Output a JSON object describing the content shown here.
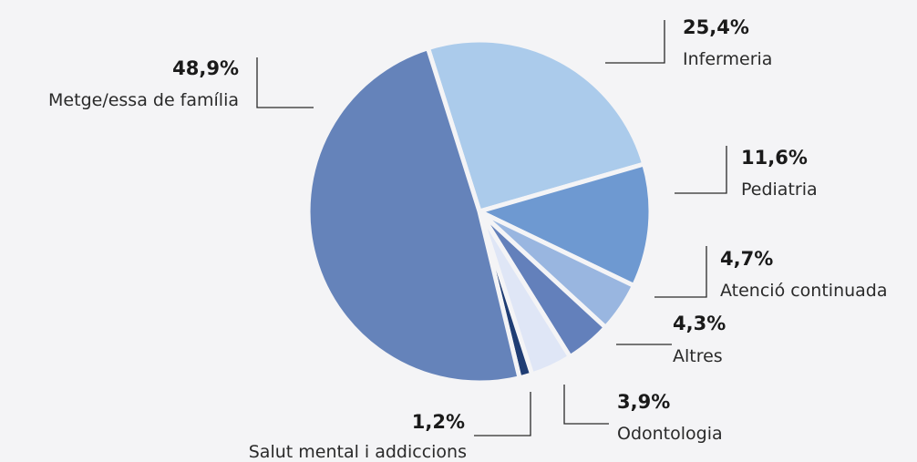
{
  "chart_data": {
    "type": "pie",
    "title": "",
    "slices": [
      {
        "label": "Infermeria",
        "value": 25.4,
        "value_label": "25,4%",
        "color": "#abcbeb"
      },
      {
        "label": "Pediatria",
        "value": 11.6,
        "value_label": "11,6%",
        "color": "#6e99d1"
      },
      {
        "label": "Atenció continuada",
        "value": 4.7,
        "value_label": "4,7%",
        "color": "#99b6e0"
      },
      {
        "label": "Altres",
        "value": 4.3,
        "value_label": "4,3%",
        "color": "#6380bb"
      },
      {
        "label": "Odontologia",
        "value": 3.9,
        "value_label": "3,9%",
        "color": "#dfe6f6"
      },
      {
        "label": "Salut mental i addiccions",
        "value": 1.2,
        "value_label": "1,2%",
        "color": "#1f3d74"
      },
      {
        "label": "Metge/essa de família",
        "value": 48.9,
        "value_label": "48,9%",
        "color": "#6583ba"
      }
    ]
  }
}
